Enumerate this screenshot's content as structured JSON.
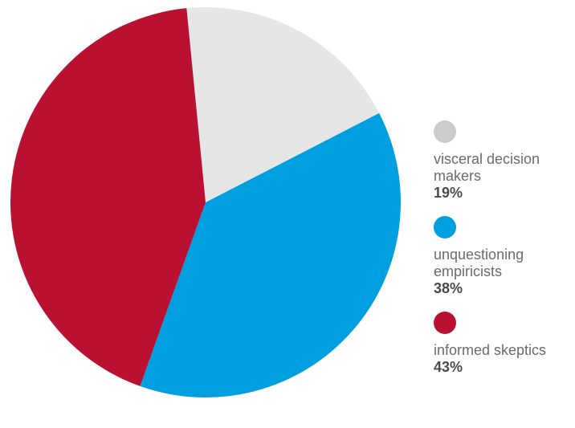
{
  "chart_data": {
    "type": "pie",
    "title": "",
    "slices": [
      {
        "label": "visceral decision makers",
        "value": 19,
        "display": "19%",
        "color": "#e6e6e6",
        "legend_color": "#cbcbcb"
      },
      {
        "label": "unquestioning empiricists",
        "value": 38,
        "display": "38%",
        "color": "#009fdf",
        "legend_color": "#009fdf"
      },
      {
        "label": "informed skeptics",
        "value": 43,
        "display": "43%",
        "color": "#ba1133",
        "legend_color": "#ba1133"
      }
    ],
    "legend_placement": "right"
  }
}
